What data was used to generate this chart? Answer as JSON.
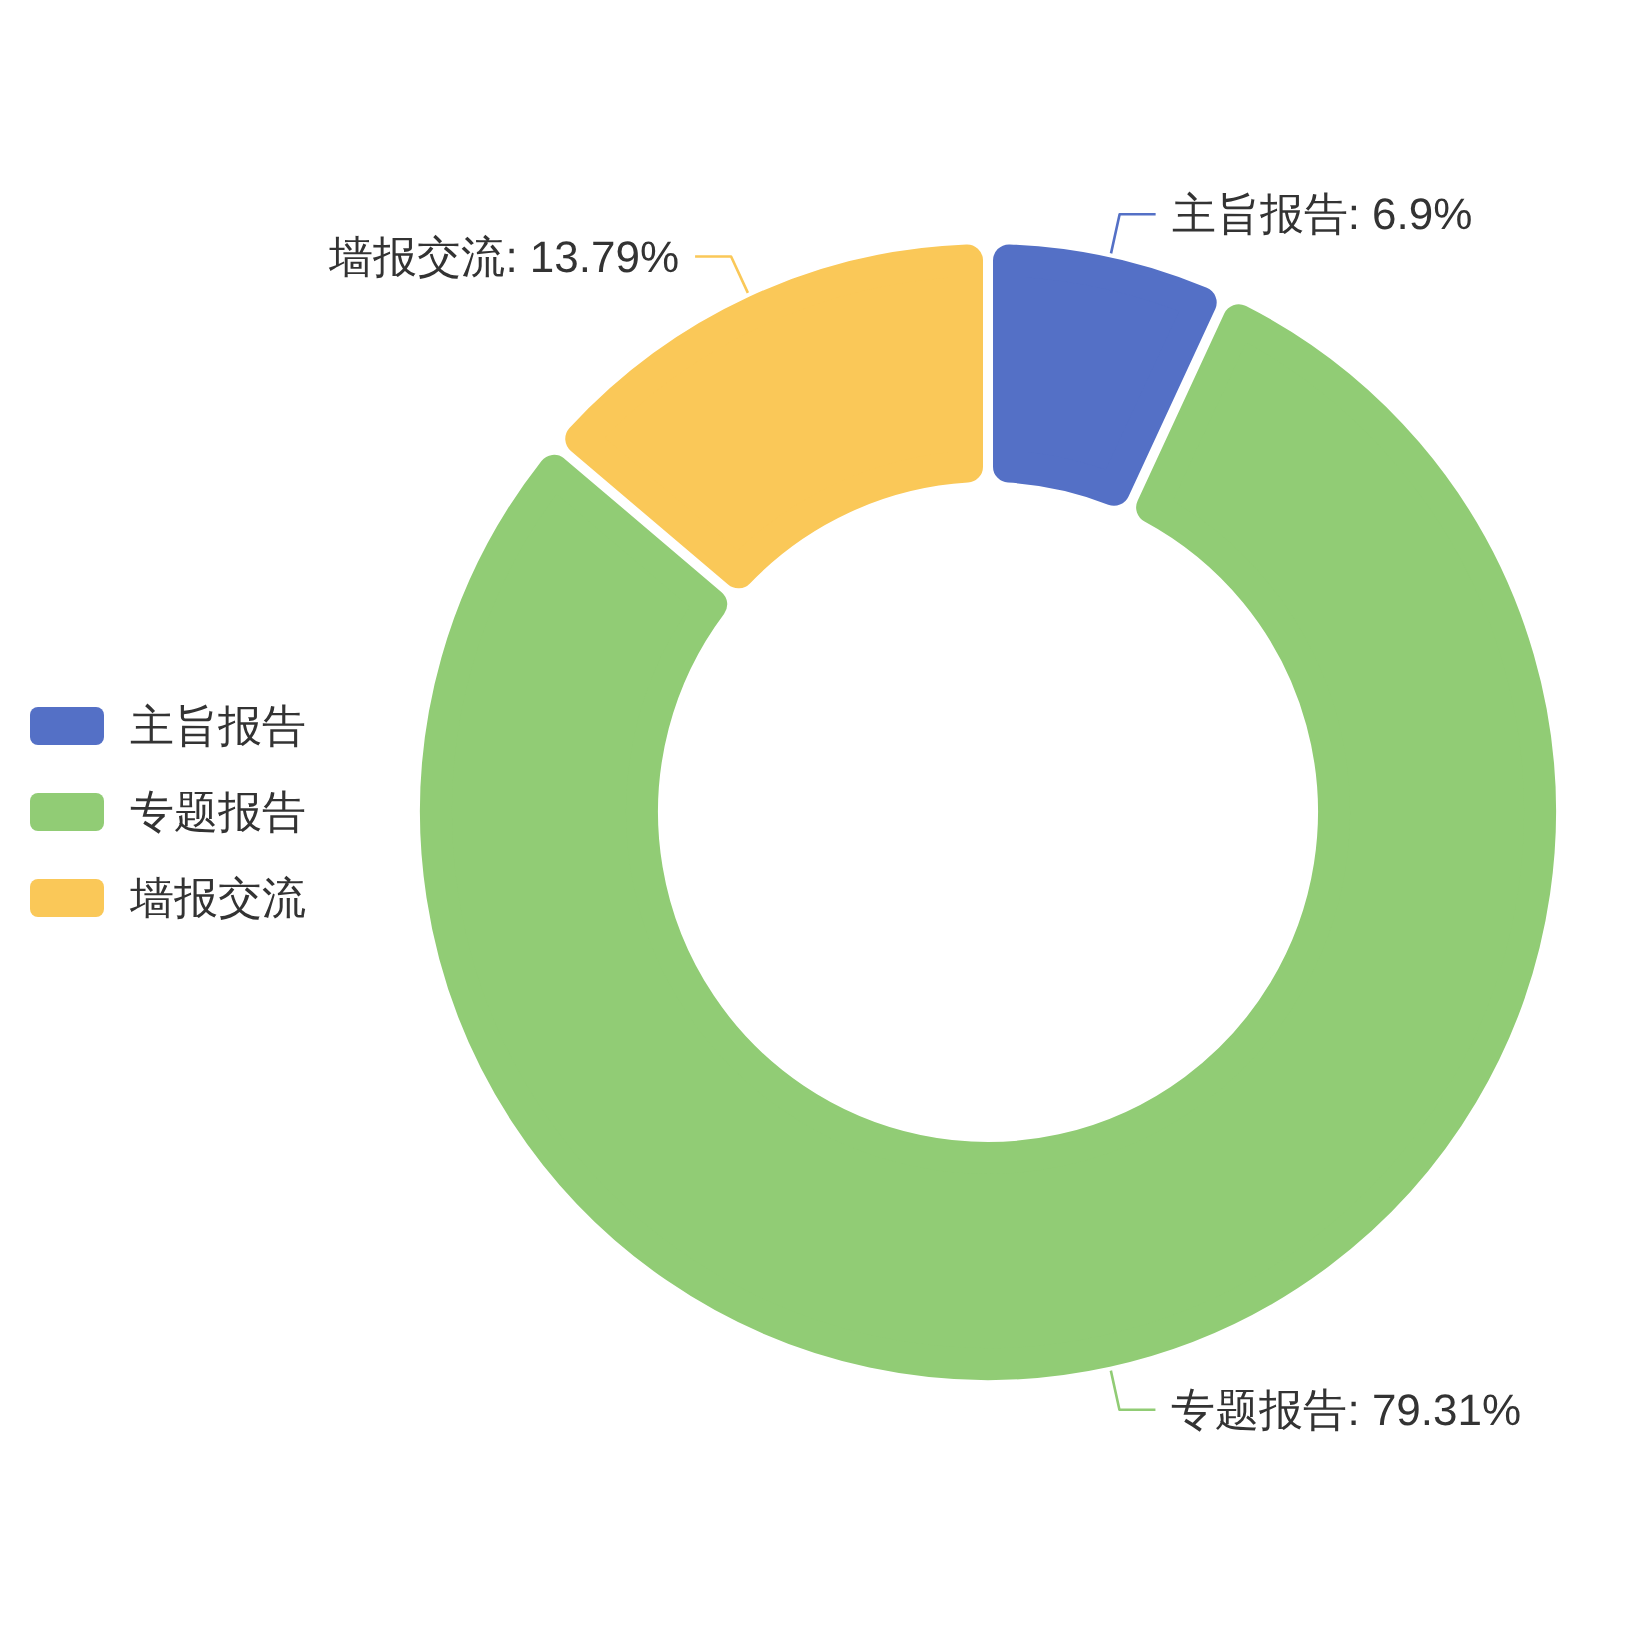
{
  "chart_data": {
    "type": "donut",
    "categories": [
      "主旨报告",
      "专题报告",
      "墙报交流"
    ],
    "values": [
      6.9,
      79.31,
      13.79
    ],
    "colors": [
      "#5470c6",
      "#91cc75",
      "#fac858"
    ],
    "value_labels": [
      "主旨报告: 6.9%",
      "专题报告: 79.31%",
      "墙报交流: 13.79%"
    ],
    "legend": "left"
  }
}
